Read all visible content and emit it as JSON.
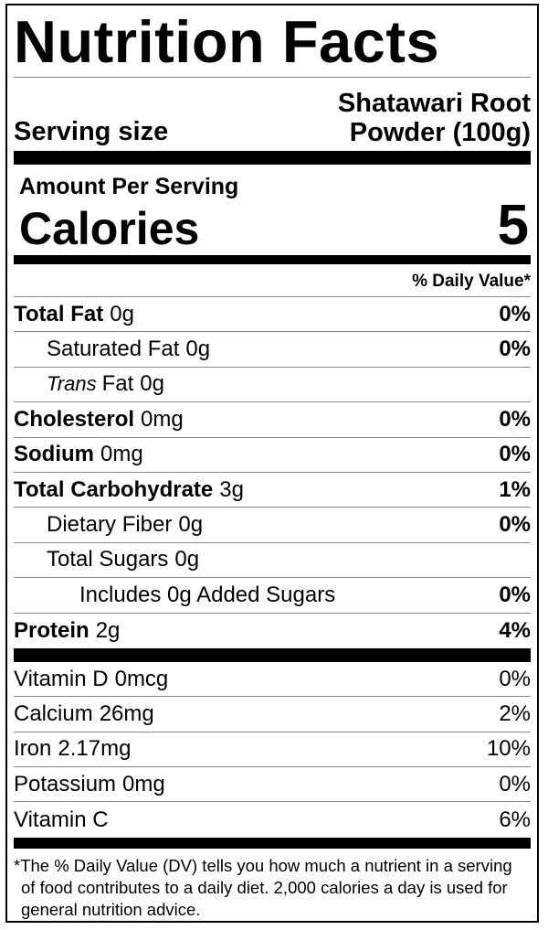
{
  "header": {
    "title": "Nutrition Facts",
    "serving_label": "Serving size",
    "serving_value": "Shatawari Root Powder (100g)"
  },
  "calories": {
    "amount_label": "Amount Per Serving",
    "label": "Calories",
    "value": "5"
  },
  "dv_header": "% Daily Value*",
  "nutrients": [
    {
      "name": "Total Fat",
      "amount": "0g",
      "dv": "0%",
      "bold": true,
      "indent": 0
    },
    {
      "name": "Saturated Fat",
      "amount": "0g",
      "dv": "0%",
      "bold": false,
      "indent": 1
    },
    {
      "italic": "Trans",
      "name": "Fat",
      "amount": "0g",
      "bold": false,
      "indent": 1
    },
    {
      "name": "Cholesterol",
      "amount": "0mg",
      "dv": "0%",
      "bold": true,
      "indent": 0
    },
    {
      "name": "Sodium",
      "amount": "0mg",
      "dv": "0%",
      "bold": true,
      "indent": 0
    },
    {
      "name": "Total Carbohydrate",
      "amount": "3g",
      "dv": "1%",
      "bold": true,
      "indent": 0
    },
    {
      "name": "Dietary Fiber",
      "amount": "0g",
      "dv": "0%",
      "bold": false,
      "indent": 1
    },
    {
      "name": "Total Sugars",
      "amount": "0g",
      "bold": false,
      "indent": 1
    },
    {
      "name": "Includes 0g Added Sugars",
      "dv": "0%",
      "bold": false,
      "indent": 2
    },
    {
      "name": "Protein",
      "amount": "2g",
      "dv": "4%",
      "bold": true,
      "indent": 0
    }
  ],
  "vitamins": [
    {
      "name": "Vitamin D",
      "amount": "0mcg",
      "dv": "0%"
    },
    {
      "name": "Calcium",
      "amount": "26mg",
      "dv": "2%"
    },
    {
      "name": "Iron",
      "amount": "2.17mg",
      "dv": "10%"
    },
    {
      "name": "Potassium",
      "amount": "0mg",
      "dv": "0%"
    },
    {
      "name": "Vitamin C",
      "dv": "6%"
    }
  ],
  "footnote": "*The % Daily Value (DV) tells you how much a nutrient in a serving of food contributes to a daily diet. 2,000 calories a day is used for general nutrition advice."
}
